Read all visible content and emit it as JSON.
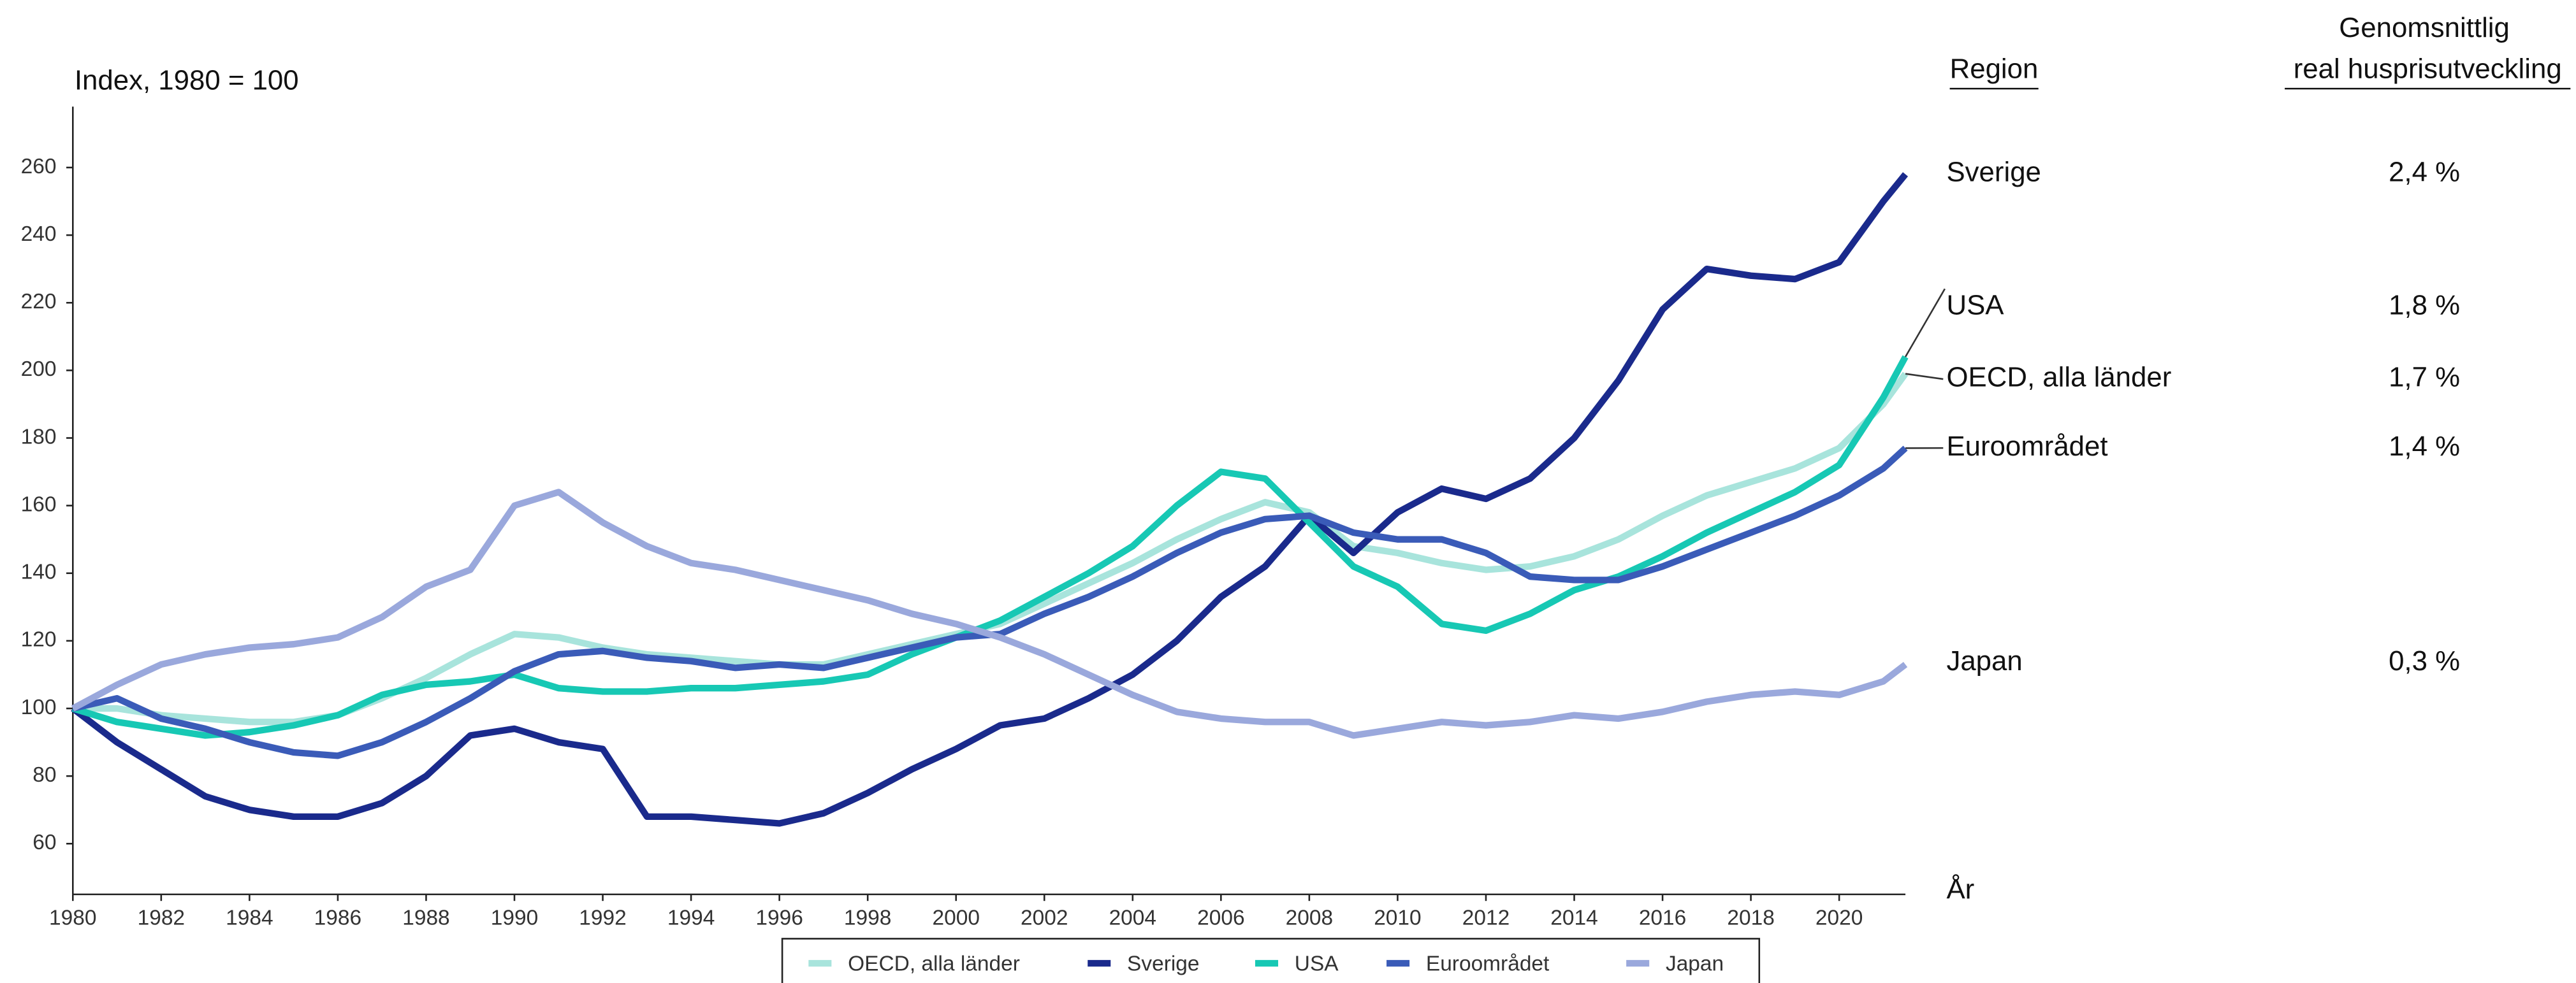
{
  "chart_data": {
    "type": "line",
    "y_label": "Index, 1980 = 100",
    "x_label": "År",
    "x": [
      1980,
      1981,
      1982,
      1983,
      1984,
      1985,
      1986,
      1987,
      1988,
      1989,
      1990,
      1991,
      1992,
      1993,
      1994,
      1995,
      1996,
      1997,
      1998,
      1999,
      2000,
      2001,
      2002,
      2003,
      2004,
      2005,
      2006,
      2007,
      2008,
      2009,
      2010,
      2011,
      2012,
      2013,
      2014,
      2015,
      2016,
      2017,
      2018,
      2019,
      2020,
      2021,
      2021.5
    ],
    "xlim": [
      1980,
      2021.5
    ],
    "xticks": [
      1980,
      1982,
      1984,
      1986,
      1988,
      1990,
      1992,
      1994,
      1996,
      1998,
      2000,
      2002,
      2004,
      2006,
      2008,
      2010,
      2012,
      2014,
      2016,
      2018,
      2020
    ],
    "ylim": [
      45,
      278
    ],
    "yticks": [
      60,
      80,
      100,
      120,
      140,
      160,
      180,
      200,
      220,
      240,
      260
    ],
    "grid": false,
    "legend": "bottom",
    "series": [
      {
        "name": "OECD, alla länder",
        "color": "#a8e4dc",
        "values": [
          100,
          100,
          98,
          97,
          96,
          96,
          98,
          103,
          109,
          116,
          122,
          121,
          118,
          116,
          115,
          114,
          113,
          113,
          116,
          119,
          122,
          125,
          131,
          137,
          143,
          150,
          156,
          161,
          158,
          148,
          146,
          143,
          141,
          142,
          145,
          150,
          157,
          163,
          167,
          171,
          177,
          190,
          199
        ]
      },
      {
        "name": "Sverige",
        "color": "#1a2a8c",
        "values": [
          100,
          90,
          82,
          74,
          70,
          68,
          68,
          72,
          80,
          92,
          94,
          90,
          88,
          68,
          68,
          67,
          66,
          69,
          75,
          82,
          88,
          95,
          97,
          103,
          110,
          120,
          133,
          142,
          157,
          146,
          158,
          165,
          162,
          168,
          180,
          197,
          218,
          230,
          228,
          227,
          232,
          250,
          258
        ]
      },
      {
        "name": "USA",
        "color": "#17c8b4",
        "values": [
          100,
          96,
          94,
          92,
          93,
          95,
          98,
          104,
          107,
          108,
          110,
          106,
          105,
          105,
          106,
          106,
          107,
          108,
          110,
          116,
          121,
          126,
          133,
          140,
          148,
          160,
          170,
          168,
          155,
          142,
          136,
          125,
          123,
          128,
          135,
          139,
          145,
          152,
          158,
          164,
          172,
          192,
          204
        ]
      },
      {
        "name": "Euroområdet",
        "color": "#3a5bb8",
        "values": [
          100,
          103,
          97,
          94,
          90,
          87,
          86,
          90,
          96,
          103,
          111,
          116,
          117,
          115,
          114,
          112,
          113,
          112,
          115,
          118,
          121,
          122,
          128,
          133,
          139,
          146,
          152,
          156,
          157,
          152,
          150,
          150,
          146,
          139,
          138,
          138,
          142,
          147,
          152,
          157,
          163,
          171,
          177
        ]
      },
      {
        "name": "Japan",
        "color": "#9aa8dc",
        "values": [
          100,
          107,
          113,
          116,
          118,
          119,
          121,
          127,
          136,
          141,
          160,
          164,
          155,
          148,
          143,
          141,
          138,
          135,
          132,
          128,
          125,
          121,
          116,
          110,
          104,
          99,
          97,
          96,
          96,
          92,
          94,
          96,
          95,
          96,
          98,
          97,
          99,
          102,
          104,
          105,
          104,
          108,
          113
        ]
      }
    ],
    "region_table": {
      "header_region": "Region",
      "header_growth": [
        "Genomsnittlig",
        "real husprisutveckling"
      ],
      "regions": [
        "Sverige",
        "USA",
        "OECD, alla länder",
        "Euroområdet",
        "Japan"
      ],
      "growth": [
        2.4,
        1.8,
        1.7,
        1.4,
        0.3
      ],
      "growth_labels": [
        "2,4 %",
        "1,8 %",
        "1,7 %",
        "1,4 %",
        "0,3 %"
      ]
    }
  }
}
